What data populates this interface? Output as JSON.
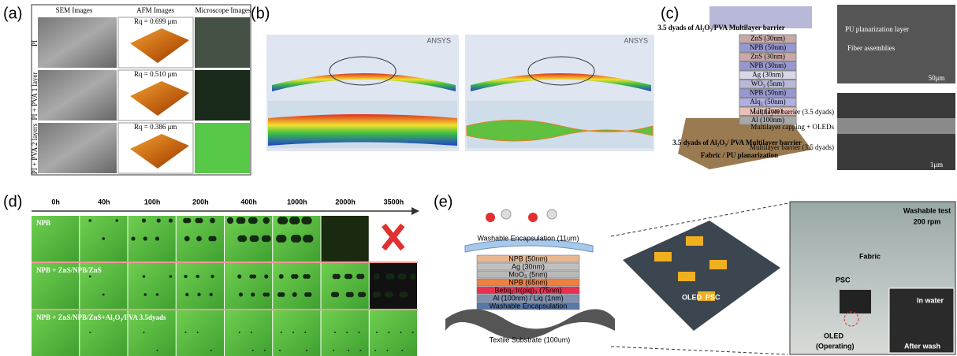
{
  "panels": {
    "a": {
      "label": "(a)",
      "headers": [
        "SEM Images",
        "AFM Images",
        "Microscope Images"
      ],
      "rows": [
        "PI",
        "PI + PVA 1 layer",
        "PI + PVA 2 layers"
      ],
      "roughness": [
        "Rq = 0.699 μm",
        "Rq = 0.510 μm",
        "Rq = 0.386 μm"
      ]
    },
    "b": {
      "label": "(b)",
      "software": "ANSYS"
    },
    "c": {
      "label": "(c)",
      "top_label": "3.5 dyads of Al₂O₃/PVA Multilayer barrier",
      "layers": [
        "ZnS (30nm)",
        "NPB (50nm)",
        "ZnS (30nm)",
        "NPB (30nm)",
        "Ag (30nm)",
        "WO₃ (5nm)",
        "NPB (50nm)",
        "Alq₃ (50nm)",
        "Liq (2nm)",
        "Al (100nm)"
      ],
      "bottom_label": "3.5 dyads of Al₂O₃/ PVA Multilayer barrier",
      "substrate": "Fabric / PU planarization",
      "sem_top": [
        "PU planarization layer",
        "Fiber assemblies",
        "50μm"
      ],
      "sem_bottom": [
        "Multilayer barrier (3.5 dyads)",
        "Multilayer capping + OLEDs",
        "Multilayer barrier (3.5 dyads)",
        "1μm"
      ]
    },
    "d": {
      "label": "(d)",
      "times": [
        "0h",
        "40h",
        "100h",
        "200h",
        "400h",
        "1000h",
        "2000h",
        "3500h"
      ],
      "rows": [
        "NPB",
        "NPB + ZnS/NPB/ZnS",
        "NPB + ZnS/NPB/ZnS+Al₂O₃/PVA 3.5dyads"
      ]
    },
    "e": {
      "label": "(e)",
      "layers": [
        "Washable Encapsulation (11um)",
        "NPB (50nm)",
        "Ag (30nm)",
        "MoO₃ (5nm)",
        "NPB (65nm)",
        "Bebq₂:Ir(piq)₃ (75nm)",
        "Al (100nm) / Liq (1nm)",
        "Washable Encapsulation"
      ],
      "substrate": "Textile Substrate (100um)",
      "network": [
        "OLED",
        "PSC"
      ],
      "photo": [
        "Washable test",
        "200 rpm",
        "Fabric",
        "PSC",
        "OLED",
        "(Operating)",
        "In water",
        "After wash"
      ]
    }
  }
}
